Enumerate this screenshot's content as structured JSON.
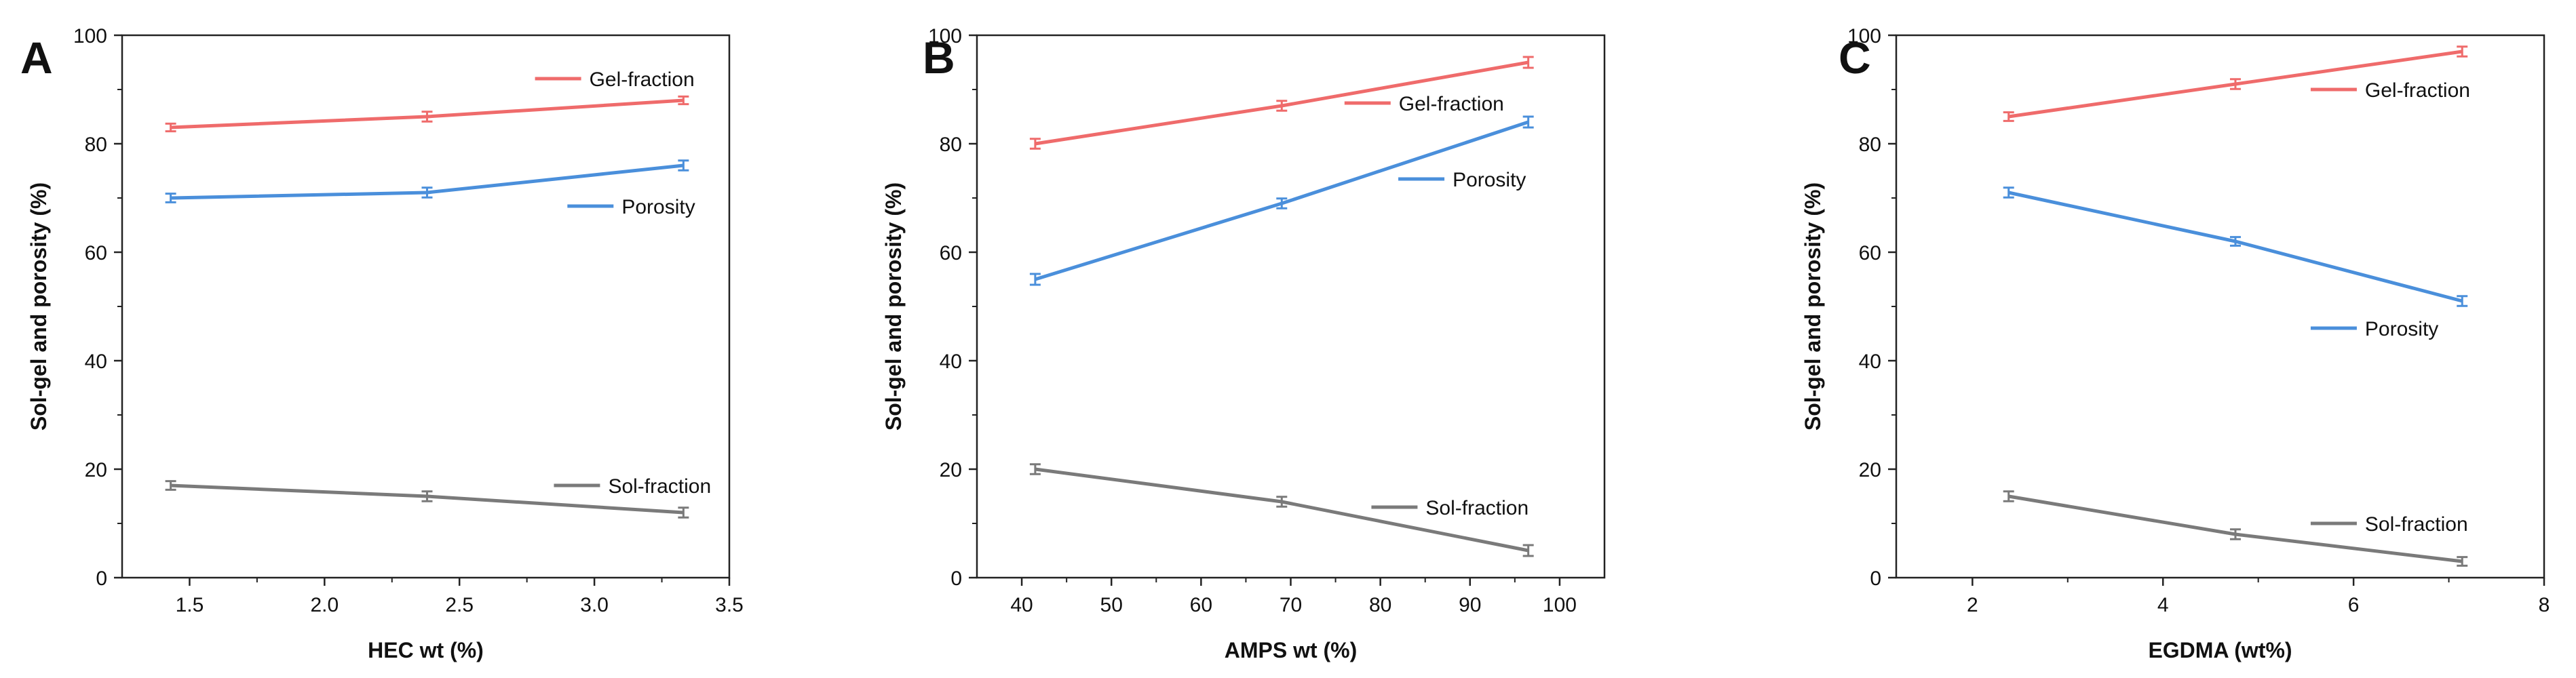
{
  "figure": {
    "panels_summary": "Three-panel line chart figure"
  },
  "colors": {
    "gel": "#ef6b6b",
    "porosity": "#4a8fdb",
    "sol": "#7a7a7a",
    "axis": "#222222"
  },
  "chart_data": [
    {
      "type": "line",
      "panel_label": "A",
      "xlabel": "HEC wt (%)",
      "ylabel": "Sol-gel and porosity (%)",
      "xlim": [
        1.25,
        3.5
      ],
      "ylim": [
        0,
        100
      ],
      "xticks": [
        1.5,
        2.0,
        2.5,
        3.0,
        3.5
      ],
      "xtick_labels": [
        "1.5",
        "2.0",
        "2.5",
        "3.0",
        "3.5"
      ],
      "yticks": [
        0,
        20,
        40,
        60,
        80,
        100
      ],
      "ytick_labels": [
        "0",
        "20",
        "40",
        "60",
        "80",
        "100"
      ],
      "x": [
        1.43,
        2.38,
        3.33
      ],
      "series": [
        {
          "name": "Gel-fraction",
          "color_key": "gel",
          "values": [
            83,
            85,
            88
          ],
          "errors": [
            0.7,
            0.9,
            0.7
          ]
        },
        {
          "name": "Porosity",
          "color_key": "porosity",
          "values": [
            70,
            71,
            76
          ],
          "errors": [
            0.8,
            0.9,
            0.9
          ]
        },
        {
          "name": "Sol-fraction",
          "color_key": "sol",
          "values": [
            17,
            15,
            12
          ],
          "errors": [
            0.8,
            0.9,
            0.9
          ]
        }
      ],
      "labels": [
        {
          "series": 0,
          "text": "Gel-fraction",
          "ax": 2.78,
          "ay": 92
        },
        {
          "series": 1,
          "text": "Porosity",
          "ax": 2.9,
          "ay": 68.5
        },
        {
          "series": 2,
          "text": "Sol-fraction",
          "ax": 2.85,
          "ay": 17
        }
      ]
    },
    {
      "type": "line",
      "panel_label": "B",
      "xlabel": "AMPS wt (%)",
      "ylabel": "Sol-gel and porosity (%)",
      "xlim": [
        35,
        105
      ],
      "ylim": [
        0,
        100
      ],
      "xticks": [
        40,
        50,
        60,
        70,
        80,
        90,
        100
      ],
      "xtick_labels": [
        "40",
        "50",
        "60",
        "70",
        "80",
        "90",
        "100"
      ],
      "yticks": [
        0,
        20,
        40,
        60,
        80,
        100
      ],
      "ytick_labels": [
        "0",
        "20",
        "40",
        "60",
        "80",
        "100"
      ],
      "x": [
        41.5,
        69,
        96.5
      ],
      "series": [
        {
          "name": "Gel-fraction",
          "color_key": "gel",
          "values": [
            80,
            87,
            95
          ],
          "errors": [
            0.9,
            0.9,
            1.0
          ]
        },
        {
          "name": "Porosity",
          "color_key": "porosity",
          "values": [
            55,
            69,
            84
          ],
          "errors": [
            1.0,
            0.9,
            1.0
          ]
        },
        {
          "name": "Sol-fraction",
          "color_key": "sol",
          "values": [
            20,
            14,
            5
          ],
          "errors": [
            0.9,
            0.9,
            1.0
          ]
        }
      ],
      "labels": [
        {
          "series": 0,
          "text": "Gel-fraction",
          "ax": 76,
          "ay": 87.5
        },
        {
          "series": 1,
          "text": "Porosity",
          "ax": 82,
          "ay": 73.5
        },
        {
          "series": 2,
          "text": "Sol-fraction",
          "ax": 79,
          "ay": 13
        }
      ]
    },
    {
      "type": "line",
      "panel_label": "C",
      "xlabel": "EGDMA (wt%)",
      "ylabel": "Sol-gel and porosity (%)",
      "xlim": [
        1.2,
        8
      ],
      "ylim": [
        0,
        100
      ],
      "xticks": [
        2,
        4,
        6,
        8
      ],
      "xtick_labels": [
        "2",
        "4",
        "6",
        "8"
      ],
      "yticks": [
        0,
        20,
        40,
        60,
        80,
        100
      ],
      "ytick_labels": [
        "0",
        "20",
        "40",
        "60",
        "80",
        "100"
      ],
      "x": [
        2.38,
        4.76,
        7.14
      ],
      "series": [
        {
          "name": "Gel-fraction",
          "color_key": "gel",
          "values": [
            85,
            91,
            97
          ],
          "errors": [
            0.8,
            0.9,
            0.9
          ]
        },
        {
          "name": "Porosity",
          "color_key": "porosity",
          "values": [
            71,
            62,
            51
          ],
          "errors": [
            0.9,
            0.8,
            0.9
          ]
        },
        {
          "name": "Sol-fraction",
          "color_key": "sol",
          "values": [
            15,
            8,
            3
          ],
          "errors": [
            0.9,
            0.9,
            0.8
          ]
        }
      ],
      "labels": [
        {
          "series": 0,
          "text": "Gel-fraction",
          "ax": 5.55,
          "ay": 90
        },
        {
          "series": 1,
          "text": "Porosity",
          "ax": 5.55,
          "ay": 46
        },
        {
          "series": 2,
          "text": "Sol-fraction",
          "ax": 5.55,
          "ay": 10
        }
      ]
    }
  ]
}
